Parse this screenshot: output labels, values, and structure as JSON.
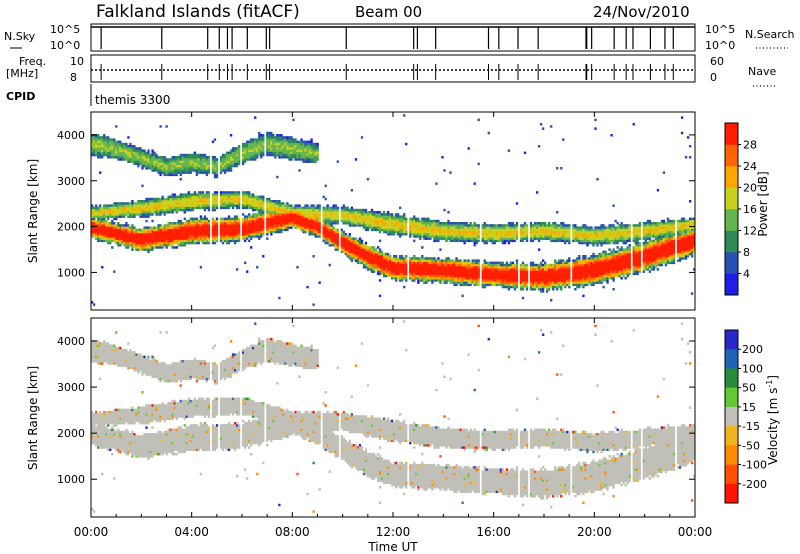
{
  "header": {
    "station": "Falkland Islands (fitACF)",
    "beam": "Beam 00",
    "date": "24/Nov/2010"
  },
  "status_panels": {
    "nsky_label": "N.Sky",
    "nsky_ticks": [
      "10^5",
      "10^0"
    ],
    "nsearch_label": "N.Search",
    "freq_label_line1": "Freq.",
    "freq_label_line2": "[MHz]",
    "freq_ticks": [
      "10",
      "8"
    ],
    "nave_label": "Nave",
    "nave_ticks": [
      "60",
      "0"
    ],
    "cpid_label": "CPID",
    "cpid_value": "themis 3300"
  },
  "colors": {
    "power_scale": [
      "#1e1ee6",
      "#2850b4",
      "#2e8b57",
      "#64b450",
      "#c8d21e",
      "#ffa500",
      "#ff6400",
      "#ff1e00"
    ],
    "velocity_scale": [
      "#2828c8",
      "#1e64b4",
      "#288c3c",
      "#64c832",
      "#c0c0b8",
      "#f0b41e",
      "#ff8c00",
      "#ff5000",
      "#ff1400"
    ]
  },
  "chart_data": [
    {
      "type": "heatmap",
      "panel": "power",
      "ylabel": "Slant Range [km]",
      "xlabel": "",
      "xlim": [
        "00:00",
        "24:00"
      ],
      "ylim": [
        180,
        4500
      ],
      "yticks": [
        "1000",
        "2000",
        "3000",
        "4000"
      ],
      "colorbar_label": "Power [dB]",
      "colorbar_ticks": [
        "4",
        "8",
        "12",
        "16",
        "20",
        "24",
        "28"
      ],
      "colorbar_range": [
        0,
        32
      ],
      "bands": [
        {
          "name": "main",
          "x": [
            0,
            2,
            4,
            6,
            8,
            9,
            10,
            11,
            12,
            14,
            16,
            18,
            20,
            22,
            24
          ],
          "center": [
            1980,
            1720,
            1900,
            1950,
            2200,
            2000,
            1650,
            1350,
            1100,
            1050,
            950,
            900,
            1050,
            1350,
            1700
          ],
          "halfwidth": [
            230,
            260,
            280,
            280,
            230,
            220,
            250,
            270,
            270,
            270,
            270,
            300,
            330,
            340,
            300
          ],
          "peak_db": 30
        },
        {
          "name": "upper",
          "x": [
            0,
            2,
            4,
            6,
            8,
            10,
            12,
            14,
            16,
            18,
            20,
            22,
            24
          ],
          "center": [
            2300,
            2400,
            2550,
            2600,
            2300,
            2250,
            2050,
            1900,
            1850,
            1900,
            1800,
            1900,
            2050
          ],
          "halfwidth": [
            150,
            180,
            200,
            180,
            180,
            200,
            230,
            220,
            200,
            200,
            200,
            200,
            150
          ],
          "peak_db": 16
        },
        {
          "name": "high",
          "x": [
            0,
            1,
            2,
            3,
            4,
            5,
            6,
            7,
            8,
            9
          ],
          "center": [
            3800,
            3700,
            3500,
            3300,
            3400,
            3300,
            3600,
            3800,
            3700,
            3600
          ],
          "halfwidth": [
            250,
            220,
            200,
            200,
            220,
            200,
            230,
            250,
            250,
            200
          ],
          "peak_db": 12
        }
      ]
    },
    {
      "type": "heatmap",
      "panel": "velocity",
      "ylabel": "Slant Range [km]",
      "xlabel": "Time UT",
      "xlim": [
        "00:00",
        "24:00"
      ],
      "xticks": [
        "00:00",
        "04:00",
        "08:00",
        "12:00",
        "16:00",
        "20:00",
        "00:00"
      ],
      "ylim": [
        180,
        4500
      ],
      "yticks": [
        "1000",
        "2000",
        "3000",
        "4000"
      ],
      "colorbar_label": "Velocity [m s^-1]",
      "colorbar_ticks": [
        "200",
        "100",
        "50",
        "15",
        "-15",
        "-50",
        "-100",
        "-200"
      ],
      "colorbar_range": [
        -250,
        250
      ],
      "note": "mostly ground scatter near 0 m/s (grey), scattered small positive/negative velocities"
    }
  ]
}
